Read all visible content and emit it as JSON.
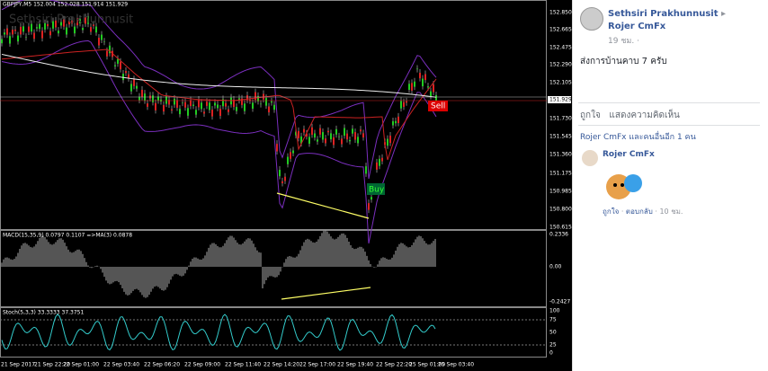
{
  "chart_screenshot": {
    "symbol_info": "GBPJPY,M5  152.004 152.028 151.914 151.929",
    "watermark": "Sethsiri Prakhunnusit",
    "price_labels": [
      "152.850",
      "152.665",
      "152.475",
      "152.290",
      "152.105",
      "151.929",
      "151.730",
      "151.545",
      "151.360",
      "151.175",
      "150.985",
      "150.800",
      "150.615"
    ],
    "signals": {
      "sell": "Sell",
      "buy": "Buy"
    },
    "macd": {
      "info": "MACD(15,35,9) 0.0797 0.1107 =>MA(3) 0.0878",
      "labels": [
        "0.2336",
        "0.00",
        "-0.2427"
      ]
    },
    "stoch": {
      "info": "Stoch(5,3,3) 33.3333 37.3751",
      "labels": [
        "100",
        "75",
        "50",
        "25",
        "0"
      ]
    },
    "time_labels": [
      "21 Sep 2017",
      "21 Sep 22:20",
      "22 Sep 01:00",
      "22 Sep 03:40",
      "22 Sep 06:20",
      "22 Sep 09:00",
      "22 Sep 11:40",
      "22 Sep 14:20",
      "22 Sep 17:00",
      "22 Sep 19:40",
      "22 Sep 22:20",
      "25 Sep 01:00",
      "25 Sep 03:40"
    ]
  },
  "post": {
    "author": "Sethsiri Prakhunnusit",
    "arrow": "▸",
    "target": "Rojer CmFx",
    "time": "19 ชม.",
    "separator": "·",
    "text": "ส่งการบ้านคาบ 7 ครับ",
    "like": "ถูกใจ",
    "comment": "แสดงความคิดเห็น",
    "reactions": "Rojer CmFx และคนอื่นอีก 1 คน",
    "reply": {
      "author": "Rojer CmFx",
      "like": "ถูกใจ",
      "reply": "ตอบกลับ",
      "time": "10 ชม."
    }
  }
}
